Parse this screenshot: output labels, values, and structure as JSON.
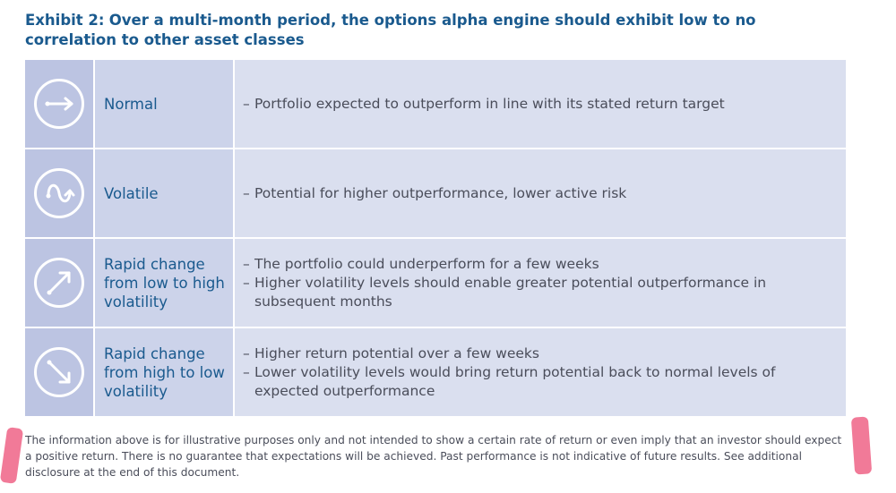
{
  "title": {
    "prefix": "Exhibit 2:",
    "text": "Over a multi-month period, the options alpha engine should exhibit low to no correlation to other asset classes"
  },
  "rows": [
    {
      "icon": "arrow-right-icon",
      "label": "Normal",
      "bullets": [
        "Portfolio expected to outperform in line with its stated return target"
      ]
    },
    {
      "icon": "wave-icon",
      "label": "Volatile",
      "bullets": [
        "Potential for higher outperformance, lower active risk"
      ]
    },
    {
      "icon": "arrow-up-right-icon",
      "label": "Rapid change from low to high volatility",
      "bullets": [
        "The portfolio could underperform for a few weeks",
        "Higher volatility levels should enable greater potential outperformance in subsequent months"
      ]
    },
    {
      "icon": "arrow-down-right-icon",
      "label": "Rapid change from high to low volatility",
      "bullets": [
        "Higher return potential over a few weeks",
        "Lower volatility levels would bring return potential back to normal levels of expected outperformance"
      ]
    }
  ],
  "bullet_dash": "–",
  "footnote": "The information above is for illustrative purposes only and not intended to show a certain rate of return or even imply that an investor should expect a positive return. There is no guarantee that expectations will be achieved. Past performance is not indicative of future results. See additional disclosure at the end of this document.",
  "colors": {
    "title": "#1a5a8e",
    "icon_cell": "#bcc4e2",
    "label_cell": "#ccd3ea",
    "desc_cell": "#dadfef",
    "highlight_mark": "#ef6b8d"
  }
}
